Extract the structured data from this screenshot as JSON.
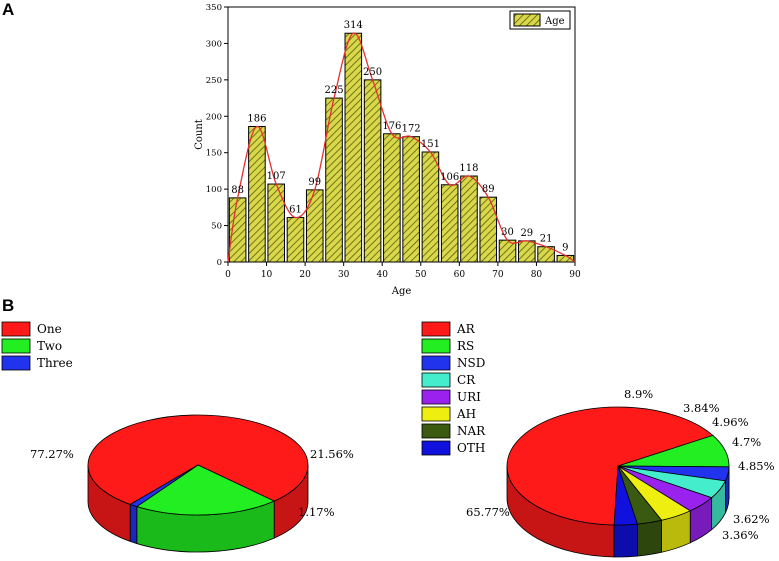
{
  "panel_labels": [
    "A",
    "B"
  ],
  "chart_data": [
    {
      "type": "bar",
      "title": "",
      "xlabel": "Age",
      "ylabel": "Count",
      "legend": [
        "Age"
      ],
      "legend_position": "top-right",
      "bin_centers": [
        2.5,
        7.5,
        12.5,
        17.5,
        22.5,
        27.5,
        32.5,
        37.5,
        42.5,
        47.5,
        52.5,
        57.5,
        62.5,
        67.5,
        72.5,
        77.5,
        82.5,
        87.5
      ],
      "values": [
        88,
        186,
        107,
        61,
        99,
        225,
        314,
        250,
        176,
        172,
        151,
        106,
        118,
        89,
        30,
        29,
        21,
        9
      ],
      "xlim": [
        0,
        90
      ],
      "ylim": [
        0,
        350
      ],
      "x_ticks": [
        "0",
        "10",
        "20",
        "30",
        "40",
        "50",
        "60",
        "70",
        "80",
        "90"
      ],
      "y_ticks": [
        "0",
        "50",
        "100",
        "150",
        "200",
        "250",
        "300",
        "350"
      ],
      "fit_line": "smoothed density curve (red)",
      "colors": {
        "bar_fill": "#d8d84a",
        "bar_hatch": "#5a5a10",
        "curve": "#e53030"
      }
    },
    {
      "type": "pie",
      "style": "3d",
      "legend": [
        "One",
        "Two",
        "Three"
      ],
      "legend_position": "top-left",
      "slices": [
        {
          "label": "One",
          "value": 77.27,
          "text": "77.27%",
          "color": "#ff1a1a"
        },
        {
          "label": "Two",
          "value": 21.56,
          "text": "21.56%",
          "color": "#22ee22"
        },
        {
          "label": "Three",
          "value": 1.17,
          "text": "1.17%",
          "color": "#2233ee"
        }
      ]
    },
    {
      "type": "pie",
      "style": "3d",
      "legend": [
        "AR",
        "RS",
        "NSD",
        "CR",
        "URI",
        "AH",
        "NAR",
        "OTH"
      ],
      "legend_position": "top-left",
      "slices": [
        {
          "label": "AR",
          "value": 65.77,
          "text": "65.77%",
          "color": "#ff1a1a"
        },
        {
          "label": "RS",
          "value": 8.9,
          "text": "8.9%",
          "color": "#22ee22"
        },
        {
          "label": "NSD",
          "value": 3.84,
          "text": "3.84%",
          "color": "#2233ee"
        },
        {
          "label": "CR",
          "value": 4.96,
          "text": "4.96%",
          "color": "#44eecc"
        },
        {
          "label": "URI",
          "value": 4.7,
          "text": "4.7%",
          "color": "#9922ee"
        },
        {
          "label": "AH",
          "value": 4.85,
          "text": "4.85%",
          "color": "#eeee11"
        },
        {
          "label": "NAR",
          "value": 3.62,
          "text": "3.62%",
          "color": "#3a5a12"
        },
        {
          "label": "OTH",
          "value": 3.36,
          "text": "3.36%",
          "color": "#1111dd"
        }
      ]
    }
  ]
}
